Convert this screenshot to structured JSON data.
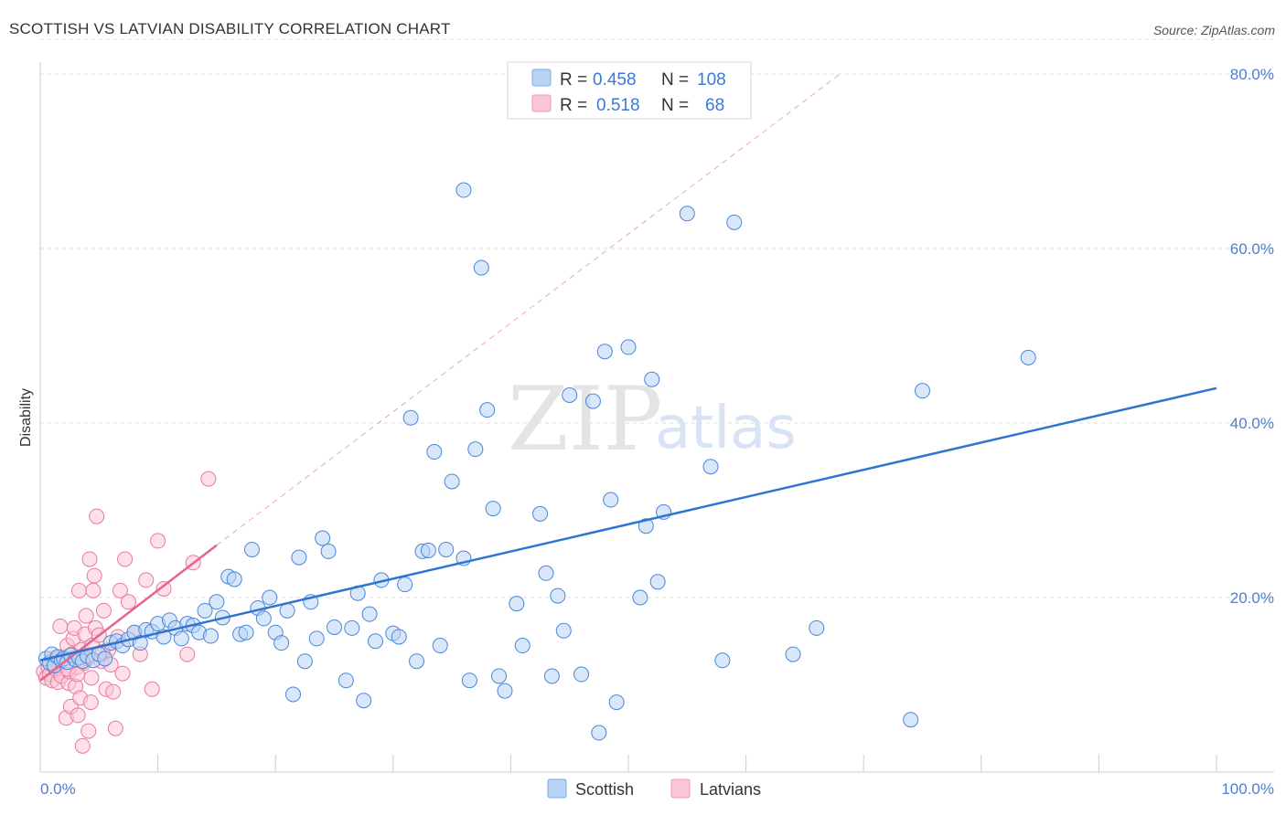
{
  "title": "SCOTTISH VS LATVIAN DISABILITY CORRELATION CHART",
  "source": "Source: ZipAtlas.com",
  "watermark": {
    "zip": "ZIP",
    "atlas": "atlas"
  },
  "legend": {
    "r_label": "R =",
    "n_label": "N =",
    "rows": [
      {
        "r": "0.458",
        "n": "108",
        "fill": "#b9d3f5",
        "stroke": "#7ea9e6"
      },
      {
        "r": "0.518",
        "n": "68",
        "fill": "#fbc6d5",
        "stroke": "#f09ab5"
      }
    ]
  },
  "bottom_legend": [
    "Scottish",
    "Latvians"
  ],
  "chart_data": {
    "type": "scatter",
    "title": "SCOTTISH VS LATVIAN DISABILITY CORRELATION CHART",
    "xlabel": "",
    "ylabel": "Disability",
    "xlim": [
      0,
      100
    ],
    "ylim": [
      0,
      85
    ],
    "x_tick_labels": [
      "0.0%",
      "100.0%"
    ],
    "y_ticks": [
      20,
      40,
      60,
      80
    ],
    "y_tick_labels": [
      "20.0%",
      "40.0%",
      "60.0%",
      "80.0%"
    ],
    "grid": true,
    "legend_position": "top-center",
    "colors": {
      "scottish": "#4a86d8",
      "latvians": "#e9799f",
      "trend_blue": "#2f74d0",
      "trend_pink": "#e3648f"
    },
    "series": [
      {
        "name": "Scottish",
        "r": 0.458,
        "n": 108,
        "trend": {
          "x": [
            0,
            100
          ],
          "y": [
            12.8,
            44.0
          ]
        },
        "points": [
          [
            0.5,
            13.0
          ],
          [
            0.8,
            12.5
          ],
          [
            1.0,
            13.5
          ],
          [
            1.2,
            12.2
          ],
          [
            1.5,
            13.2
          ],
          [
            1.8,
            12.8
          ],
          [
            2.0,
            13.0
          ],
          [
            2.3,
            12.6
          ],
          [
            2.6,
            13.4
          ],
          [
            3.0,
            12.9
          ],
          [
            3.3,
            13.1
          ],
          [
            3.6,
            12.7
          ],
          [
            4.0,
            13.3
          ],
          [
            4.5,
            12.8
          ],
          [
            5.0,
            13.5
          ],
          [
            5.5,
            13.0
          ],
          [
            6.0,
            14.8
          ],
          [
            6.5,
            15.0
          ],
          [
            7.0,
            14.5
          ],
          [
            7.5,
            15.2
          ],
          [
            8.0,
            16.0
          ],
          [
            8.5,
            14.8
          ],
          [
            9.0,
            16.3
          ],
          [
            9.5,
            16.1
          ],
          [
            10.0,
            17.0
          ],
          [
            10.5,
            15.5
          ],
          [
            11.0,
            17.4
          ],
          [
            11.5,
            16.5
          ],
          [
            12.0,
            15.3
          ],
          [
            12.5,
            17.0
          ],
          [
            13.0,
            16.8
          ],
          [
            13.5,
            16.0
          ],
          [
            14.0,
            18.5
          ],
          [
            14.5,
            15.6
          ],
          [
            15.0,
            19.5
          ],
          [
            15.5,
            17.7
          ],
          [
            16.0,
            22.4
          ],
          [
            16.5,
            22.1
          ],
          [
            17.0,
            15.8
          ],
          [
            17.5,
            16.0
          ],
          [
            18.0,
            25.5
          ],
          [
            18.5,
            18.8
          ],
          [
            19.0,
            17.6
          ],
          [
            19.5,
            20.0
          ],
          [
            20.0,
            16.0
          ],
          [
            20.5,
            14.8
          ],
          [
            21.0,
            18.5
          ],
          [
            21.5,
            8.9
          ],
          [
            22.0,
            24.6
          ],
          [
            22.5,
            12.7
          ],
          [
            23.0,
            19.5
          ],
          [
            23.5,
            15.3
          ],
          [
            24.0,
            26.8
          ],
          [
            24.5,
            25.3
          ],
          [
            25.0,
            16.6
          ],
          [
            26.0,
            10.5
          ],
          [
            26.5,
            16.5
          ],
          [
            27.0,
            20.5
          ],
          [
            27.5,
            8.2
          ],
          [
            28.0,
            18.1
          ],
          [
            28.5,
            15.0
          ],
          [
            29.0,
            22.0
          ],
          [
            30.0,
            15.9
          ],
          [
            30.5,
            15.5
          ],
          [
            31.0,
            21.5
          ],
          [
            32.0,
            12.7
          ],
          [
            31.5,
            40.6
          ],
          [
            32.5,
            25.3
          ],
          [
            33.0,
            25.4
          ],
          [
            33.5,
            36.7
          ],
          [
            34.5,
            25.5
          ],
          [
            34.0,
            14.5
          ],
          [
            35.0,
            33.3
          ],
          [
            36.0,
            24.5
          ],
          [
            36.5,
            10.5
          ],
          [
            36.0,
            66.7
          ],
          [
            37.5,
            57.8
          ],
          [
            38.0,
            41.5
          ],
          [
            37.0,
            37.0
          ],
          [
            38.5,
            30.2
          ],
          [
            39.0,
            11.0
          ],
          [
            39.5,
            9.3
          ],
          [
            40.5,
            19.3
          ],
          [
            41.0,
            14.5
          ],
          [
            42.5,
            29.6
          ],
          [
            43.0,
            22.8
          ],
          [
            43.5,
            11.0
          ],
          [
            44.0,
            20.2
          ],
          [
            44.5,
            16.2
          ],
          [
            45.0,
            43.2
          ],
          [
            46.0,
            11.2
          ],
          [
            47.0,
            42.5
          ],
          [
            48.0,
            48.2
          ],
          [
            48.5,
            31.2
          ],
          [
            49.0,
            8.0
          ],
          [
            47.5,
            4.5
          ],
          [
            50.0,
            48.7
          ],
          [
            51.0,
            20.0
          ],
          [
            51.5,
            28.2
          ],
          [
            52.0,
            45.0
          ],
          [
            52.5,
            21.8
          ],
          [
            53.0,
            29.8
          ],
          [
            55.0,
            64.0
          ],
          [
            57.0,
            35.0
          ],
          [
            58.0,
            12.8
          ],
          [
            59.0,
            63.0
          ],
          [
            64.0,
            13.5
          ],
          [
            66.0,
            16.5
          ],
          [
            75.0,
            43.7
          ],
          [
            74.0,
            6.0
          ],
          [
            84.0,
            47.5
          ]
        ]
      },
      {
        "name": "Latvians",
        "r": 0.518,
        "n": 68,
        "trend": {
          "x": [
            0,
            15
          ],
          "y": [
            10.5,
            26.0
          ]
        },
        "trend_extension": {
          "x": [
            15,
            68
          ],
          "y": [
            26.0,
            80.0
          ]
        },
        "points": [
          [
            0.3,
            11.5
          ],
          [
            0.5,
            10.8
          ],
          [
            0.7,
            12.0
          ],
          [
            0.8,
            11.2
          ],
          [
            1.0,
            10.5
          ],
          [
            1.1,
            12.5
          ],
          [
            1.2,
            13.0
          ],
          [
            1.3,
            11.8
          ],
          [
            1.5,
            10.3
          ],
          [
            1.6,
            12.2
          ],
          [
            1.7,
            16.7
          ],
          [
            1.8,
            11.0
          ],
          [
            2.0,
            13.2
          ],
          [
            2.1,
            12.6
          ],
          [
            2.2,
            6.2
          ],
          [
            2.3,
            14.5
          ],
          [
            2.4,
            10.2
          ],
          [
            2.5,
            11.5
          ],
          [
            2.6,
            7.5
          ],
          [
            2.7,
            13.5
          ],
          [
            2.8,
            15.3
          ],
          [
            2.9,
            16.5
          ],
          [
            3.0,
            9.8
          ],
          [
            3.1,
            12.0
          ],
          [
            3.2,
            6.5
          ],
          [
            3.3,
            20.8
          ],
          [
            3.4,
            8.5
          ],
          [
            3.5,
            14.0
          ],
          [
            3.6,
            3.0
          ],
          [
            3.7,
            12.5
          ],
          [
            3.8,
            15.8
          ],
          [
            3.9,
            17.9
          ],
          [
            4.0,
            13.0
          ],
          [
            4.1,
            4.7
          ],
          [
            4.2,
            24.4
          ],
          [
            4.3,
            8.0
          ],
          [
            4.4,
            14.5
          ],
          [
            4.5,
            20.8
          ],
          [
            4.6,
            22.5
          ],
          [
            4.7,
            16.5
          ],
          [
            4.8,
            29.3
          ],
          [
            5.0,
            15.7
          ],
          [
            5.2,
            12.7
          ],
          [
            5.4,
            18.5
          ],
          [
            5.6,
            9.5
          ],
          [
            5.8,
            14.0
          ],
          [
            6.0,
            12.3
          ],
          [
            6.2,
            9.2
          ],
          [
            6.4,
            5.0
          ],
          [
            6.6,
            15.5
          ],
          [
            6.8,
            20.8
          ],
          [
            7.0,
            11.3
          ],
          [
            7.2,
            24.4
          ],
          [
            7.5,
            19.5
          ],
          [
            8.0,
            16.0
          ],
          [
            8.5,
            13.5
          ],
          [
            9.0,
            22.0
          ],
          [
            9.5,
            9.5
          ],
          [
            10.0,
            26.5
          ],
          [
            10.5,
            21.0
          ],
          [
            12.5,
            13.5
          ],
          [
            13.0,
            24.0
          ],
          [
            14.3,
            33.6
          ],
          [
            1.4,
            12.8
          ],
          [
            2.35,
            11.8
          ],
          [
            3.15,
            11.2
          ],
          [
            4.35,
            10.8
          ],
          [
            5.3,
            13.8
          ]
        ]
      }
    ]
  }
}
